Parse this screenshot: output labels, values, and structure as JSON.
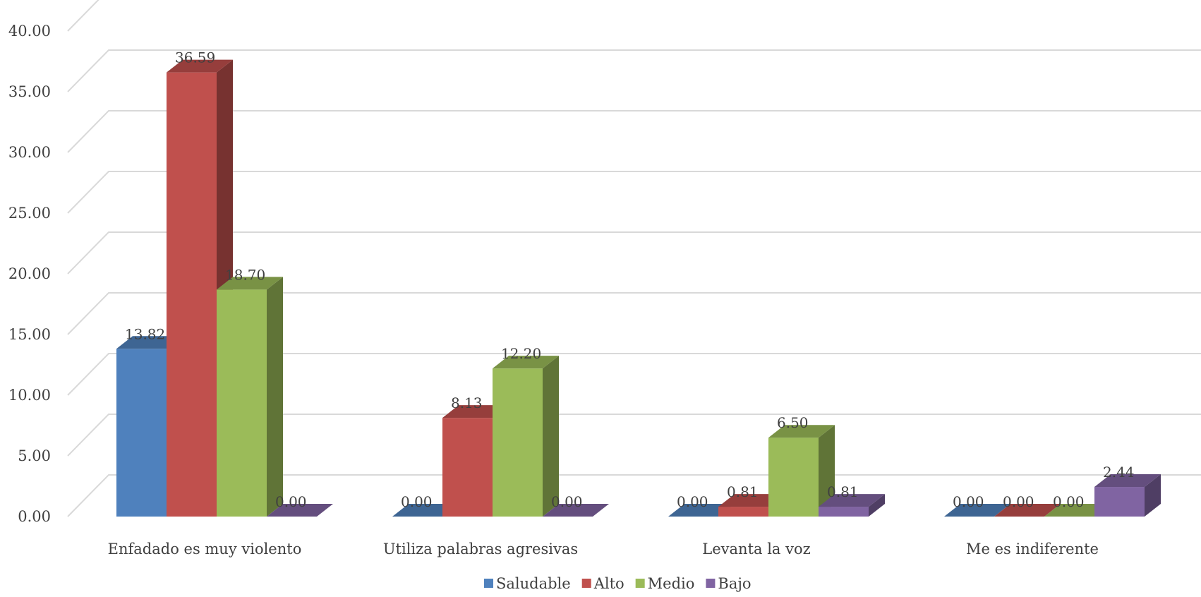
{
  "chart_data": {
    "type": "bar",
    "categories": [
      "Enfadado es muy violento",
      "Utiliza palabras agresivas",
      "Levanta la voz",
      "Me es indiferente"
    ],
    "series": [
      {
        "name": "Saludable",
        "values": [
          13.82,
          0.0,
          0.0,
          0.0
        ],
        "color": "#4F81BD"
      },
      {
        "name": "Alto",
        "values": [
          36.59,
          8.13,
          0.81,
          0.0
        ],
        "color": "#C0504D"
      },
      {
        "name": "Medio",
        "values": [
          18.7,
          12.2,
          6.5,
          0.0
        ],
        "color": "#9BBB59"
      },
      {
        "name": "Bajo",
        "values": [
          0.0,
          0.0,
          0.81,
          2.44
        ],
        "color": "#8064A2"
      }
    ],
    "ylim": [
      0,
      40
    ],
    "yticks": [
      "0.00",
      "5.00",
      "10.00",
      "15.00",
      "20.00",
      "25.00",
      "30.00",
      "35.00",
      "40.00"
    ],
    "grid": true,
    "legend_position": "bottom",
    "data_labels": true,
    "style": "3d-clustered-column"
  }
}
